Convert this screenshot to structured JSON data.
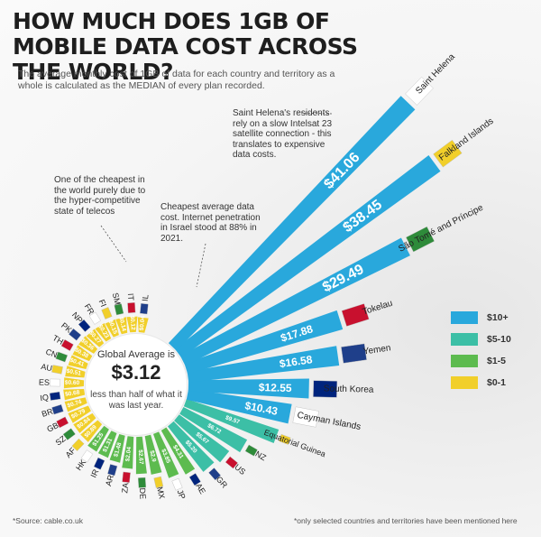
{
  "title": "HOW MUCH DOES 1GB OF MOBILE DATA COST ACROSS THE WORLD?",
  "subtitle": "The average monthly cost of 1GB of data for each country and territory as a whole is calculated as the MEDIAN of every plan recorded.",
  "notes": {
    "saint_helena": "Saint Helena's residents rely on a slow Intelsat 23 satellite connection - this translates to expensive data costs.",
    "india": "One of the cheapest in the world purely due to the hyper-competitive state of telecos",
    "israel": "Cheapest average data cost. Internet penetration in Israel stood at 88% in 2021."
  },
  "center": {
    "label": "Global Average is",
    "value": "$3.12",
    "note": "less than half of what it was last year."
  },
  "legend": [
    {
      "label": "$10+",
      "color": "#29a8dc"
    },
    {
      "label": "$5-10",
      "color": "#3cbfa6"
    },
    {
      "label": "$1-5",
      "color": "#5dbb4f"
    },
    {
      "label": "$0-1",
      "color": "#f1cf2a"
    }
  ],
  "footer": {
    "source": "*Source:  cable.co.uk",
    "disclaimer": "*only selected countries and territories have been mentioned here"
  },
  "chart_data": {
    "type": "bar",
    "layout": "radial",
    "categories": [
      "IL",
      "IT",
      "SM",
      "FI",
      "FR",
      "NP",
      "PK",
      "TH",
      "CN",
      "AU",
      "ES",
      "IQ",
      "BR",
      "GB",
      "SZ",
      "AF",
      "HK",
      "IR",
      "AR",
      "ZA",
      "DE",
      "MX",
      "JP",
      "AE",
      "GR",
      "US",
      "NZ",
      "Equatorial Guinea",
      "Cayman Islands",
      "South Korea",
      "Yemen",
      "Tokelau",
      "São Tomé and Príncipe",
      "Falkland Islands",
      "Saint Helena"
    ],
    "values": [
      0.04,
      0.12,
      0.14,
      0.15,
      0.23,
      0.27,
      0.36,
      0.38,
      0.41,
      0.51,
      0.6,
      0.68,
      0.74,
      0.79,
      0.84,
      0.89,
      1.25,
      1.31,
      1.48,
      2.04,
      2.67,
      2.9,
      3.85,
      4.31,
      5.2,
      5.67,
      6.72,
      9.57,
      10.43,
      12.55,
      16.58,
      17.88,
      29.49,
      38.45,
      41.06
    ],
    "value_labels": [
      "$0.04",
      "$0.12",
      "$0.14",
      "$0.15",
      "$0.23",
      "$0.27",
      "$0.36",
      "$0.38",
      "$0.41",
      "$0.51",
      "$0.60",
      "$0.68",
      "$0.74",
      "$0.79",
      "$0.84",
      "$0.89",
      "$1.25",
      "$1.31",
      "$1.48",
      "$2.04",
      "$2.67",
      "$2.9",
      "$3.85",
      "$4.31",
      "$5.20",
      "$5.67",
      "$6.72",
      "$9.57",
      "$10.43",
      "$12.55",
      "$16.58",
      "$17.88",
      "$29.49",
      "$38.45",
      "$41.06"
    ],
    "bins": [
      {
        "label": "$0-1",
        "min": 0,
        "max": 1,
        "color": "#f1cf2a"
      },
      {
        "label": "$1-5",
        "min": 1,
        "max": 5,
        "color": "#5dbb4f"
      },
      {
        "label": "$5-10",
        "min": 5,
        "max": 10,
        "color": "#3cbfa6"
      },
      {
        "label": "$10+",
        "min": 10,
        "max": 1000,
        "color": "#29a8dc"
      }
    ]
  }
}
